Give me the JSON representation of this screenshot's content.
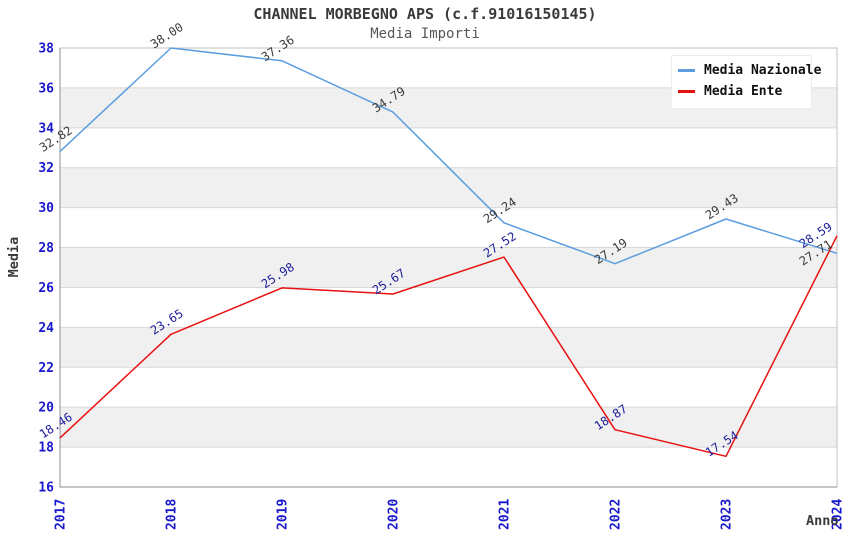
{
  "title": "CHANNEL MORBEGNO APS (c.f.91016150145)",
  "subtitle": "Media Importi",
  "legend": {
    "items": [
      {
        "label": "Media Nazionale",
        "color": "#5b9de0"
      },
      {
        "label": "Media Ente",
        "color": "#e81111"
      }
    ]
  },
  "colors": {
    "tick_label": "#1818cc",
    "band": "#f0f0f0",
    "grid": "#d8d8d8",
    "spine": "#c2c2c2",
    "spine_dark": "#8f8f8f",
    "title": "#3a3a3a",
    "subtitle": "#575757"
  },
  "chart_data": {
    "type": "line",
    "x": [
      "2017",
      "2018",
      "2019",
      "2020",
      "2021",
      "2022",
      "2023",
      "2024"
    ],
    "xlabel": "Anno",
    "ylabel": "Media",
    "ylim": [
      16,
      38
    ],
    "yticks": [
      16,
      18,
      20,
      22,
      24,
      26,
      28,
      30,
      32,
      34,
      36,
      38
    ],
    "grid": true,
    "background_bands": "alternating gray/white every 2 units",
    "legend_position": "upper right",
    "series": [
      {
        "name": "Media Nazionale",
        "color": "#5b9de0",
        "label_color": "#3a3a3a",
        "values": [
          32.82,
          38.0,
          37.36,
          34.79,
          29.24,
          27.19,
          29.43,
          27.71
        ]
      },
      {
        "name": "Media Ente",
        "color": "#e81111",
        "label_color": "#1d1d9b",
        "values": [
          18.46,
          23.65,
          25.98,
          25.67,
          27.52,
          18.87,
          17.54,
          28.59
        ]
      }
    ]
  }
}
